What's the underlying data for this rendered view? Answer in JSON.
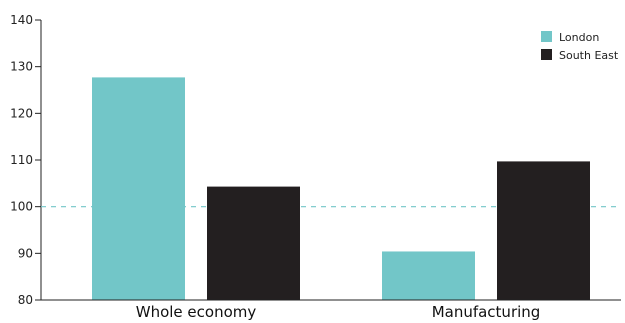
{
  "chart_data": {
    "type": "bar",
    "categories": [
      "Whole economy",
      "Manufacturing"
    ],
    "series": [
      {
        "name": "London",
        "values": [
          127.7,
          90.4
        ],
        "color": "#72c6c8"
      },
      {
        "name": "South East",
        "values": [
          104.3,
          109.7
        ],
        "color": "#231f20"
      }
    ],
    "ylim": [
      80,
      140
    ],
    "yticks": [
      80,
      90,
      100,
      110,
      120,
      130,
      140
    ],
    "reference_line": {
      "value": 100,
      "color": "#72c6c8",
      "style": "dashed"
    },
    "legend_position": "top-right",
    "grid": false,
    "title": "",
    "xlabel": "",
    "ylabel": ""
  }
}
